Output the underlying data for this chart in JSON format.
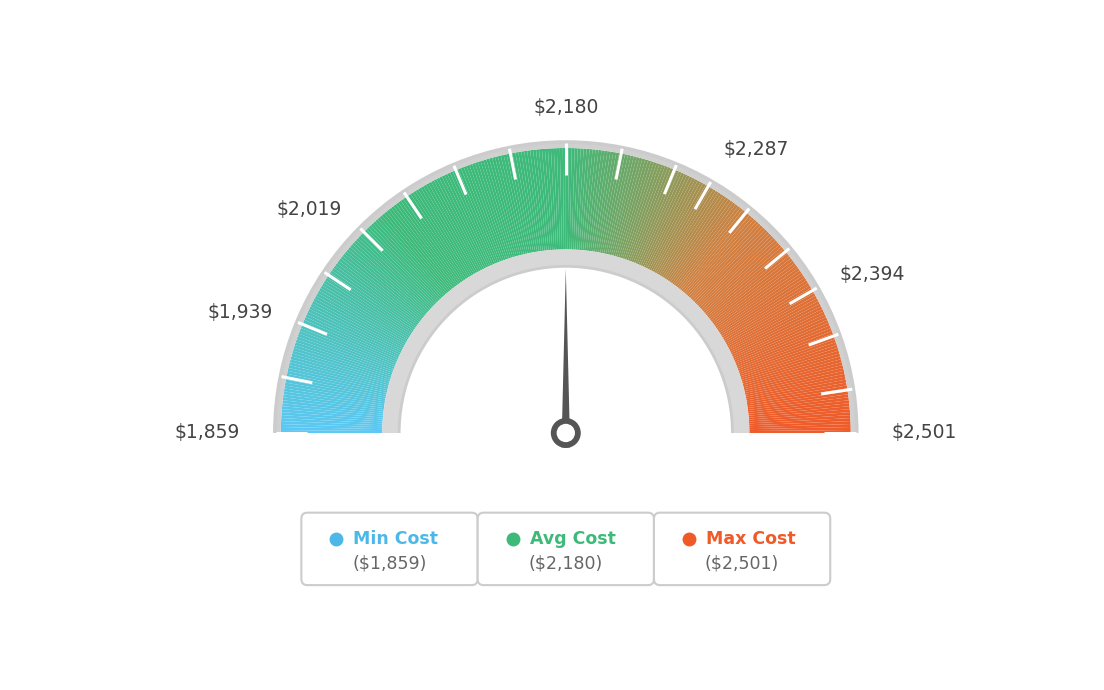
{
  "min_val": 1859,
  "max_val": 2501,
  "avg_val": 2180,
  "tick_labels": [
    "$1,859",
    "$1,939",
    "$2,019",
    "$2,180",
    "$2,287",
    "$2,394",
    "$2,501"
  ],
  "tick_values": [
    1859,
    1939,
    2019,
    2180,
    2287,
    2394,
    2501
  ],
  "legend_items": [
    {
      "label": "Min Cost",
      "value": "($1,859)",
      "color": "#4db8e8"
    },
    {
      "label": "Avg Cost",
      "value": "($2,180)",
      "color": "#3dba7a"
    },
    {
      "label": "Max Cost",
      "value": "($2,501)",
      "color": "#f05a28"
    }
  ],
  "background_color": "#ffffff",
  "needle_color": "#555555"
}
